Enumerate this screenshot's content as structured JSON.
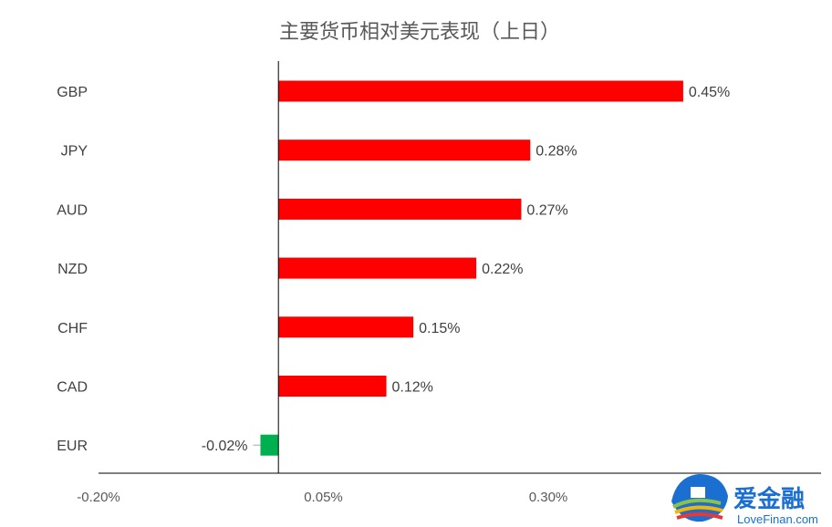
{
  "chart_data": {
    "type": "bar",
    "orientation": "horizontal",
    "title": "主要货币相对美元表现（上日）",
    "categories": [
      "GBP",
      "JPY",
      "AUD",
      "NZD",
      "CHF",
      "CAD",
      "EUR"
    ],
    "values": [
      0.45,
      0.28,
      0.27,
      0.22,
      0.15,
      0.12,
      -0.02
    ],
    "data_labels": [
      "0.45%",
      "0.28%",
      "0.27%",
      "0.22%",
      "0.15%",
      "0.12%",
      "-0.02%"
    ],
    "unit": "%",
    "xlim": [
      -0.2,
      0.45
    ],
    "xticks": [
      -0.2,
      0.05,
      0.3
    ],
    "xtick_labels": [
      "-0.20%",
      "0.05%",
      "0.30%"
    ],
    "colors": {
      "positive": "#ff0000",
      "negative": "#00b050"
    },
    "grid": false,
    "legend": "none"
  },
  "watermark": {
    "brand_cn": "爱金融",
    "brand_en": "LoveFinan.com"
  }
}
